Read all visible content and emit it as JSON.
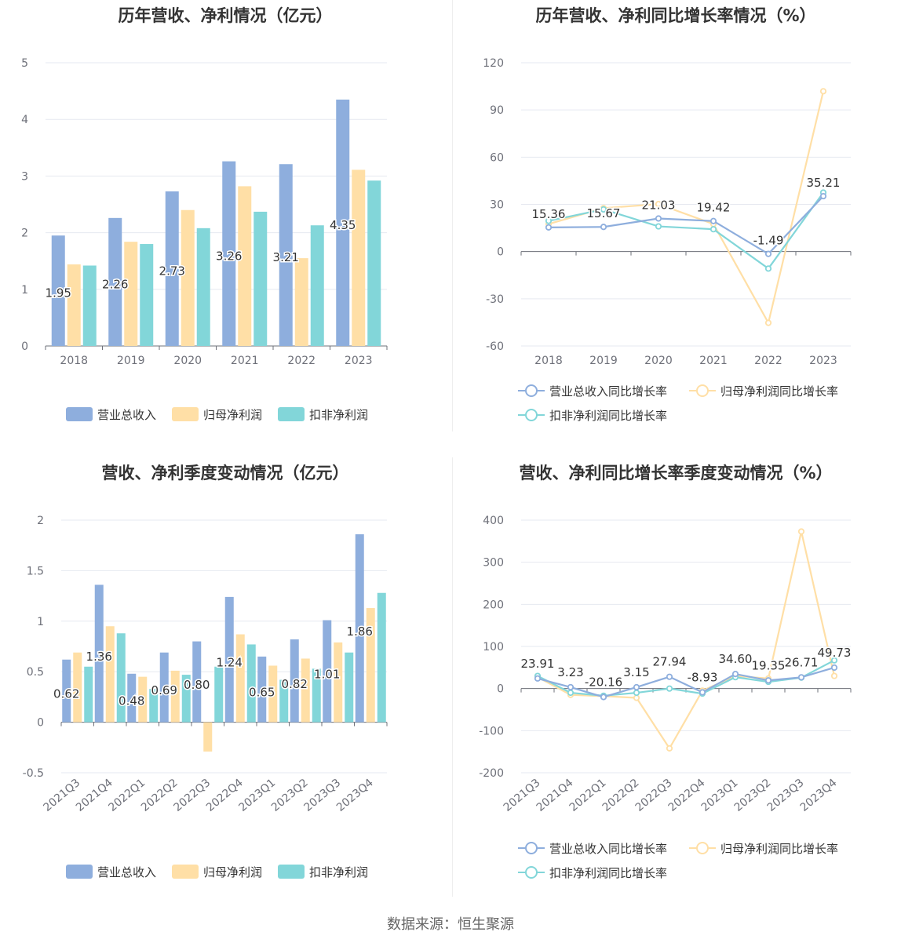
{
  "source": "数据来源：恒生聚源",
  "legend_revenue": [
    "营业总收入",
    "归母净利润",
    "扣非净利润"
  ],
  "legend_growth": [
    "营业总收入同比增长率",
    "归母净利润同比增长率",
    "扣非净利润同比增长率"
  ],
  "colors": {
    "revenue": "#8eaedd",
    "netprofit": "#ffdfa6",
    "deducted": "#82d6d9"
  },
  "chart_data": [
    {
      "type": "bar",
      "title": "历年营收、净利情况（亿元）",
      "categories": [
        "2018",
        "2019",
        "2020",
        "2021",
        "2022",
        "2023"
      ],
      "ylim": [
        0,
        5
      ],
      "yticks": [
        0,
        1,
        2,
        3,
        4,
        5
      ],
      "series": [
        {
          "name": "营业总收入",
          "values": [
            1.95,
            2.26,
            2.73,
            3.26,
            3.21,
            4.35
          ],
          "labels": [
            "1.95",
            "2.26",
            "2.73",
            "3.26",
            "3.21",
            "4.35"
          ]
        },
        {
          "name": "归母净利润",
          "values": [
            1.44,
            1.84,
            2.4,
            2.82,
            1.55,
            3.11
          ]
        },
        {
          "name": "扣非净利润",
          "values": [
            1.42,
            1.8,
            2.08,
            2.37,
            2.13,
            2.92
          ]
        }
      ],
      "legend": "bottom",
      "grid": true
    },
    {
      "type": "line",
      "title": "历年营收、净利同比增长率情况（%）",
      "categories": [
        "2018",
        "2019",
        "2020",
        "2021",
        "2022",
        "2023"
      ],
      "ylim": [
        -60,
        120
      ],
      "yticks": [
        -60,
        -30,
        0,
        30,
        60,
        90,
        120
      ],
      "series": [
        {
          "name": "营业总收入同比增长率",
          "values": [
            15.36,
            15.67,
            21.03,
            19.42,
            -1.49,
            35.21
          ],
          "labels": [
            "15.36",
            "15.67",
            "21.03",
            "19.42",
            "-1.49",
            "35.21"
          ]
        },
        {
          "name": "归母净利润同比增长率",
          "values": [
            17.5,
            27.6,
            30.2,
            17.5,
            -45.3,
            101.9
          ]
        },
        {
          "name": "扣非净利润同比增长率",
          "values": [
            19.5,
            26.8,
            16.0,
            14.2,
            -10.8,
            37.5
          ]
        }
      ],
      "legend": "bottom",
      "grid": true
    },
    {
      "type": "bar",
      "title": "营收、净利季度变动情况（亿元）",
      "categories": [
        "2021Q3",
        "2021Q4",
        "2022Q1",
        "2022Q2",
        "2022Q3",
        "2022Q4",
        "2023Q1",
        "2023Q2",
        "2023Q3",
        "2023Q4"
      ],
      "ylim": [
        -0.5,
        2
      ],
      "yticks": [
        -0.5,
        0,
        0.5,
        1,
        1.5,
        2
      ],
      "series": [
        {
          "name": "营业总收入",
          "values": [
            0.62,
            1.36,
            0.48,
            0.69,
            0.8,
            1.24,
            0.65,
            0.82,
            1.01,
            1.86
          ],
          "labels": [
            "0.62",
            "1.36",
            "0.48",
            "0.69",
            "0.80",
            "1.24",
            "0.65",
            "0.82",
            "1.01",
            "1.86"
          ]
        },
        {
          "name": "归母净利润",
          "values": [
            0.69,
            0.95,
            0.45,
            0.51,
            -0.29,
            0.87,
            0.56,
            0.63,
            0.79,
            1.13
          ]
        },
        {
          "name": "扣非净利润",
          "values": [
            0.55,
            0.88,
            0.33,
            0.47,
            0.55,
            0.77,
            0.42,
            0.53,
            0.69,
            1.28
          ]
        }
      ],
      "legend": "bottom",
      "grid": true
    },
    {
      "type": "line",
      "title": "营收、净利同比增长率季度变动情况（%）",
      "categories": [
        "2021Q3",
        "2021Q4",
        "2022Q1",
        "2022Q2",
        "2022Q3",
        "2022Q4",
        "2023Q1",
        "2023Q2",
        "2023Q3",
        "2023Q4"
      ],
      "ylim": [
        -200,
        400
      ],
      "yticks": [
        -200,
        -100,
        0,
        100,
        200,
        300,
        400
      ],
      "series": [
        {
          "name": "营业总收入同比增长率",
          "values": [
            23.91,
            3.23,
            -20.16,
            3.15,
            27.94,
            -8.93,
            34.6,
            19.35,
            26.71,
            49.73
          ],
          "labels": [
            "23.91",
            "3.23",
            "-20.16",
            "3.15",
            "27.94",
            "-8.93",
            "34.60",
            "19.35",
            "26.71",
            "49.73"
          ]
        },
        {
          "name": "归母净利润同比增长率",
          "values": [
            27.0,
            -15.0,
            -18.0,
            -22.0,
            -142.0,
            -5.0,
            30.0,
            24.0,
            373.0,
            30.0
          ]
        },
        {
          "name": "扣非净利润同比增长率",
          "values": [
            30.0,
            -10.0,
            -17.0,
            -10.0,
            0.0,
            -12.0,
            27.0,
            16.0,
            26.0,
            67.0
          ]
        }
      ],
      "legend": "bottom",
      "grid": true
    }
  ]
}
